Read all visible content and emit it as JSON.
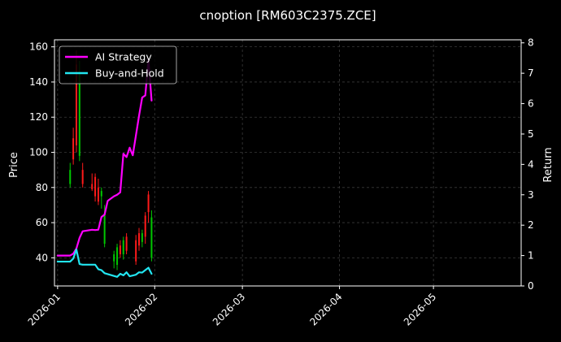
{
  "chart_data": {
    "type": "line",
    "title": "cnoption [RM603C2375.ZCE]",
    "ylabel": "Price",
    "ylabel_right": "Return",
    "x_range": [
      "2025-12-31",
      "2026-05-29"
    ],
    "ylim": [
      24,
      164
    ],
    "ylim_right": [
      0,
      8.1
    ],
    "grid": true,
    "legend_placement": "top-left",
    "colors": {
      "background": "#000000",
      "up": "#00c800",
      "down": "#ff1a1a",
      "grid": "#3a3a3a"
    },
    "x_ticks": [
      {
        "date": "2026-01-01",
        "label": "2026-01"
      },
      {
        "date": "2026-02-01",
        "label": "2026-02"
      },
      {
        "date": "2026-03-01",
        "label": "2026-03"
      },
      {
        "date": "2026-04-01",
        "label": "2026-04"
      },
      {
        "date": "2026-05-01",
        "label": "2026-05"
      }
    ],
    "y_ticks_left": [
      40,
      60,
      80,
      100,
      120,
      140,
      160
    ],
    "y_ticks_right": [
      0,
      1,
      2,
      3,
      4,
      5,
      6,
      7,
      8
    ],
    "candles": [
      {
        "date": "2026-01-05",
        "open": 82,
        "high": 94,
        "low": 80,
        "close": 90
      },
      {
        "date": "2026-01-06",
        "open": 108,
        "high": 114,
        "low": 93,
        "close": 96
      },
      {
        "date": "2026-01-07",
        "open": 150,
        "high": 158,
        "low": 100,
        "close": 104
      },
      {
        "date": "2026-01-08",
        "open": 98,
        "high": 152,
        "low": 95,
        "close": 146
      },
      {
        "date": "2026-01-09",
        "open": 90,
        "high": 94,
        "low": 80,
        "close": 82
      },
      {
        "date": "2026-01-12",
        "open": 82,
        "high": 88,
        "low": 78,
        "close": 79
      },
      {
        "date": "2026-01-13",
        "open": 86,
        "high": 88,
        "low": 72,
        "close": 75
      },
      {
        "date": "2026-01-14",
        "open": 80,
        "high": 85,
        "low": 70,
        "close": 72
      },
      {
        "date": "2026-01-15",
        "open": 75,
        "high": 80,
        "low": 68,
        "close": 78
      },
      {
        "date": "2026-01-16",
        "open": 48,
        "high": 70,
        "low": 46,
        "close": 65
      },
      {
        "date": "2026-01-19",
        "open": 38,
        "high": 44,
        "low": 34,
        "close": 42
      },
      {
        "date": "2026-01-20",
        "open": 36,
        "high": 48,
        "low": 33,
        "close": 46
      },
      {
        "date": "2026-01-21",
        "open": 47,
        "high": 50,
        "low": 40,
        "close": 42
      },
      {
        "date": "2026-01-22",
        "open": 42,
        "high": 52,
        "low": 39,
        "close": 50
      },
      {
        "date": "2026-01-23",
        "open": 52,
        "high": 54,
        "low": 42,
        "close": 44
      },
      {
        "date": "2026-01-26",
        "open": 50,
        "high": 53,
        "low": 36,
        "close": 38
      },
      {
        "date": "2026-01-27",
        "open": 54,
        "high": 57,
        "low": 44,
        "close": 47
      },
      {
        "date": "2026-01-28",
        "open": 49,
        "high": 56,
        "low": 46,
        "close": 54
      },
      {
        "date": "2026-01-29",
        "open": 64,
        "high": 66,
        "low": 48,
        "close": 52
      },
      {
        "date": "2026-01-30",
        "open": 76,
        "high": 78,
        "low": 60,
        "close": 66
      },
      {
        "date": "2026-01-31",
        "open": 40,
        "high": 67,
        "low": 38,
        "close": 63
      }
    ],
    "series": [
      {
        "name": "AI Strategy",
        "color": "#ff00ff",
        "axis": "right",
        "points": [
          [
            "2026-01-01",
            1.0
          ],
          [
            "2026-01-05",
            1.0
          ],
          [
            "2026-01-06",
            1.06
          ],
          [
            "2026-01-07",
            1.23
          ],
          [
            "2026-01-08",
            1.58
          ],
          [
            "2026-01-09",
            1.8
          ],
          [
            "2026-01-12",
            1.85
          ],
          [
            "2026-01-13",
            1.84
          ],
          [
            "2026-01-14",
            1.85
          ],
          [
            "2026-01-15",
            2.27
          ],
          [
            "2026-01-16",
            2.35
          ],
          [
            "2026-01-17",
            2.8
          ],
          [
            "2026-01-19",
            2.95
          ],
          [
            "2026-01-20",
            3.0
          ],
          [
            "2026-01-21",
            3.08
          ],
          [
            "2026-01-22",
            4.35
          ],
          [
            "2026-01-23",
            4.24
          ],
          [
            "2026-01-24",
            4.55
          ],
          [
            "2026-01-25",
            4.3
          ],
          [
            "2026-01-27",
            5.6
          ],
          [
            "2026-01-28",
            6.2
          ],
          [
            "2026-01-29",
            6.27
          ],
          [
            "2026-01-30",
            7.45
          ],
          [
            "2026-01-31",
            6.1
          ]
        ]
      },
      {
        "name": "Buy-and-Hold",
        "color": "#22e5f0",
        "axis": "right",
        "points": [
          [
            "2026-01-01",
            0.8
          ],
          [
            "2026-01-05",
            0.8
          ],
          [
            "2026-01-06",
            0.9
          ],
          [
            "2026-01-07",
            1.2
          ],
          [
            "2026-01-08",
            0.72
          ],
          [
            "2026-01-09",
            0.7
          ],
          [
            "2026-01-12",
            0.7
          ],
          [
            "2026-01-13",
            0.7
          ],
          [
            "2026-01-14",
            0.55
          ],
          [
            "2026-01-15",
            0.52
          ],
          [
            "2026-01-16",
            0.42
          ],
          [
            "2026-01-19",
            0.33
          ],
          [
            "2026-01-20",
            0.3
          ],
          [
            "2026-01-21",
            0.4
          ],
          [
            "2026-01-22",
            0.35
          ],
          [
            "2026-01-23",
            0.45
          ],
          [
            "2026-01-24",
            0.32
          ],
          [
            "2026-01-26",
            0.37
          ],
          [
            "2026-01-27",
            0.45
          ],
          [
            "2026-01-28",
            0.44
          ],
          [
            "2026-01-29",
            0.52
          ],
          [
            "2026-01-30",
            0.6
          ],
          [
            "2026-01-31",
            0.4
          ]
        ]
      }
    ]
  }
}
